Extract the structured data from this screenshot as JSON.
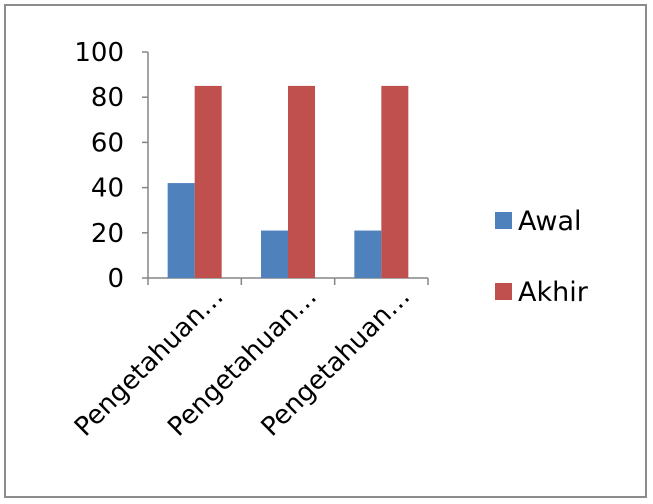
{
  "chart_data": {
    "type": "bar",
    "title": "",
    "xlabel": "",
    "ylabel": "",
    "categories": [
      "Pengetahuan…",
      "Pengetahuan…",
      "Pengetahuan…"
    ],
    "series": [
      {
        "name": "Awal",
        "values": [
          42,
          21,
          21
        ],
        "color": "#4f81bd"
      },
      {
        "name": "Akhir",
        "values": [
          85,
          85,
          85
        ],
        "color": "#c0504d"
      }
    ],
    "ylim": [
      0,
      100
    ],
    "yticks": [
      0,
      20,
      40,
      60,
      80,
      100
    ],
    "grid": false,
    "legend": "right"
  }
}
